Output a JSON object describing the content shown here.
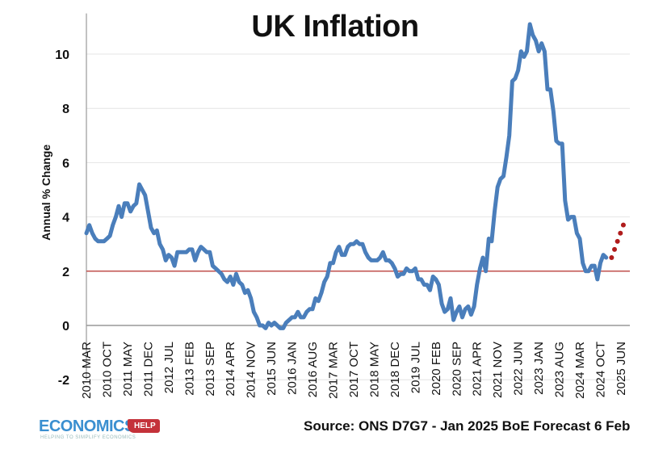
{
  "chart_data": {
    "type": "line",
    "title": "UK Inflation",
    "ylabel": "Annual % Change",
    "xlabel": "",
    "ylim": [
      -2,
      11.5
    ],
    "yticks": [
      -2,
      0,
      2,
      4,
      6,
      8,
      10
    ],
    "grid": true,
    "x_start": "2010 MAR",
    "frequency": "monthly",
    "xtick_labels": [
      "2010 MAR",
      "2010 OCT",
      "2011 MAY",
      "2011 DEC",
      "2012 JUL",
      "2013 FEB",
      "2013 SEP",
      "2014 APR",
      "2014 NOV",
      "2015 JUN",
      "2016 JAN",
      "2016 AUG",
      "2017 MAR",
      "2017 OCT",
      "2018 MAY",
      "2018 DEC",
      "2019 JUL",
      "2020 FEB",
      "2020 SEP",
      "2021 APR",
      "2021 NOV",
      "2022 JUN",
      "2023 JAN",
      "2023 AUG",
      "2024 MAR",
      "2024 OCT",
      "2025 JUN"
    ],
    "series": [
      {
        "color": "#4a7ebb",
        "values": [
          3.4,
          3.7,
          3.4,
          3.2,
          3.1,
          3.1,
          3.1,
          3.2,
          3.3,
          3.7,
          4.0,
          4.4,
          4.0,
          4.5,
          4.5,
          4.2,
          4.4,
          4.5,
          5.2,
          5.0,
          4.8,
          4.2,
          3.6,
          3.4,
          3.5,
          3.0,
          2.8,
          2.4,
          2.6,
          2.5,
          2.2,
          2.7,
          2.7,
          2.7,
          2.7,
          2.8,
          2.8,
          2.4,
          2.7,
          2.9,
          2.8,
          2.7,
          2.7,
          2.2,
          2.1,
          2.0,
          1.9,
          1.7,
          1.6,
          1.8,
          1.5,
          1.9,
          1.6,
          1.5,
          1.2,
          1.3,
          1.0,
          0.5,
          0.3,
          0.0,
          0.0,
          -0.1,
          0.1,
          0.0,
          0.1,
          0.0,
          -0.1,
          -0.1,
          0.1,
          0.2,
          0.3,
          0.3,
          0.5,
          0.3,
          0.3,
          0.5,
          0.6,
          0.6,
          1.0,
          0.9,
          1.2,
          1.6,
          1.8,
          2.3,
          2.3,
          2.7,
          2.9,
          2.6,
          2.6,
          2.9,
          3.0,
          3.0,
          3.1,
          3.0,
          3.0,
          2.7,
          2.5,
          2.4,
          2.4,
          2.4,
          2.5,
          2.7,
          2.4,
          2.4,
          2.3,
          2.1,
          1.8,
          1.9,
          1.9,
          2.1,
          2.0,
          2.0,
          2.1,
          1.7,
          1.7,
          1.5,
          1.5,
          1.3,
          1.8,
          1.7,
          1.5,
          0.8,
          0.5,
          0.6,
          1.0,
          0.2,
          0.5,
          0.7,
          0.3,
          0.6,
          0.7,
          0.4,
          0.7,
          1.5,
          2.1,
          2.5,
          2.0,
          3.2,
          3.1,
          4.2,
          5.1,
          5.4,
          5.5,
          6.2,
          7.0,
          9.0,
          9.1,
          9.4,
          10.1,
          9.9,
          10.1,
          11.1,
          10.7,
          10.5,
          10.1,
          10.4,
          10.1,
          8.7,
          8.7,
          7.9,
          6.8,
          6.7,
          6.7,
          4.6,
          3.9,
          4.0,
          4.0,
          3.4,
          3.2,
          2.3,
          2.0,
          2.0,
          2.2,
          2.2,
          1.7,
          2.3,
          2.6,
          2.5
        ]
      },
      {
        "color": "#b01c1c",
        "style": "dotted",
        "values": [
          2.5,
          2.8,
          3.1,
          3.4,
          3.7
        ]
      }
    ],
    "reference_line": {
      "value": 2,
      "color": "#c0504d"
    }
  },
  "footer": {
    "source": "Source: ONS D7G7 - Jan 2025 BoE Forecast 6 Feb",
    "logo_word": "ECONOMICS",
    "logo_tag": "HELP",
    "logo_sub": "HELPING TO SIMPLIFY ECONOMICS"
  }
}
